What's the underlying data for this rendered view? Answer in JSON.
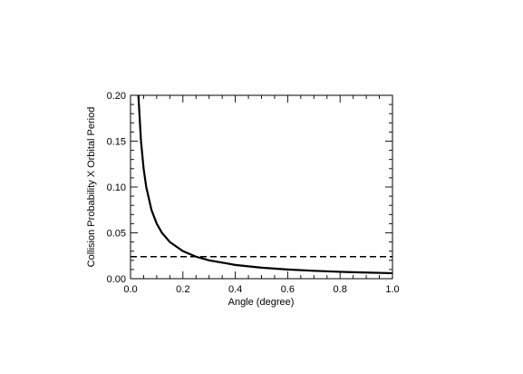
{
  "chart_data": {
    "type": "line",
    "title": "",
    "xlabel": "Angle (degree)",
    "ylabel": "Collision Probability X Orbital Period",
    "xlim": [
      0.0,
      1.0
    ],
    "ylim": [
      0.0,
      0.2
    ],
    "x_ticks": [
      "0.0",
      "0.2",
      "0.4",
      "0.6",
      "0.8",
      "1.0"
    ],
    "y_ticks": [
      "0.00",
      "0.05",
      "0.10",
      "0.15",
      "0.20"
    ],
    "grid": false,
    "series": [
      {
        "style": "solid",
        "x": [
          0.03,
          0.04,
          0.05,
          0.06,
          0.08,
          0.1,
          0.12,
          0.15,
          0.2,
          0.25,
          0.3,
          0.4,
          0.5,
          0.6,
          0.7,
          0.8,
          0.9,
          1.0
        ],
        "y": [
          0.2,
          0.15,
          0.12,
          0.1,
          0.075,
          0.06,
          0.05,
          0.04,
          0.03,
          0.024,
          0.02,
          0.015,
          0.012,
          0.01,
          0.0086,
          0.0075,
          0.0067,
          0.006
        ]
      },
      {
        "style": "dashed",
        "x": [
          0.0,
          1.0
        ],
        "y": [
          0.024,
          0.024
        ]
      }
    ]
  }
}
